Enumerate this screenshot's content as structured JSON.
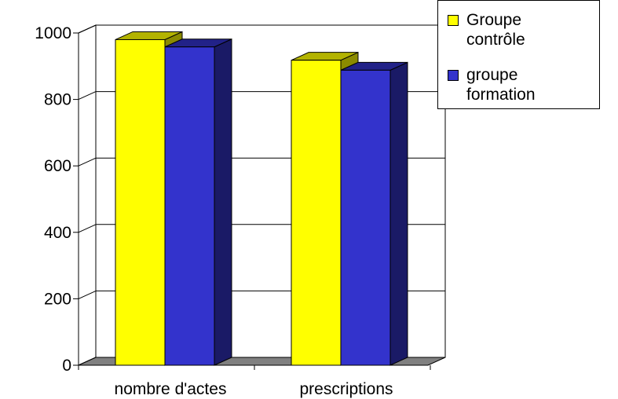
{
  "chart_data": {
    "type": "bar",
    "title": "",
    "xlabel": "",
    "ylabel": "",
    "categories": [
      "nombre d'actes",
      "prescriptions"
    ],
    "series": [
      {
        "name": "Groupe\ncontrôle",
        "color": "#ffff00",
        "values": [
          980,
          918
        ]
      },
      {
        "name": "groupe\nformation",
        "color": "#3333cc",
        "values": [
          958,
          888
        ]
      }
    ],
    "ylim": [
      0,
      1000
    ],
    "yticks": [
      0,
      200,
      400,
      600,
      800,
      1000
    ],
    "grid": true,
    "three_d": true,
    "legend_position": "top-right"
  }
}
